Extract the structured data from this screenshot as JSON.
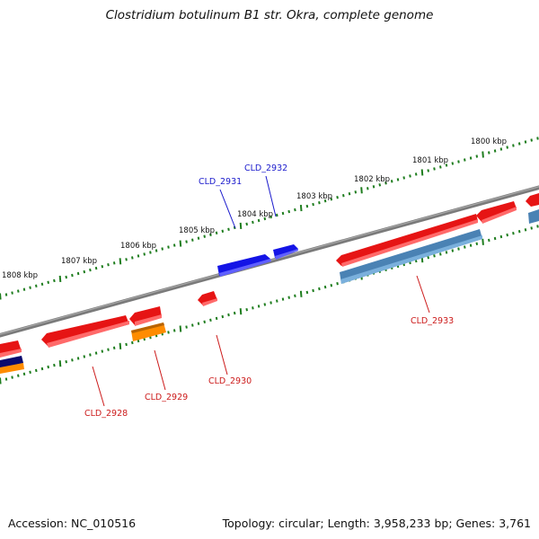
{
  "title": "Clostridium botulinum B1 str. Okra, complete genome",
  "footer": {
    "accession": "Accession: NC_010516",
    "stats": "Topology: circular; Length: 3,958,233 bp; Genes: 3,761"
  },
  "scale_labels": [
    "1800 kbp",
    "1801 kbp",
    "1802 kbp",
    "1803 kbp",
    "1804 kbp",
    "1805 kbp",
    "1806 kbp",
    "1807 kbp",
    "1808 kbp"
  ],
  "gene_labels": [
    {
      "name": "CLD_2931",
      "strand": "forward"
    },
    {
      "name": "CLD_2932",
      "strand": "forward"
    },
    {
      "name": "CLD_2928",
      "strand": "reverse"
    },
    {
      "name": "CLD_2929",
      "strand": "reverse"
    },
    {
      "name": "CLD_2930",
      "strand": "reverse"
    },
    {
      "name": "CLD_2933",
      "strand": "reverse"
    }
  ],
  "colors": {
    "backbone": "#7a7a7a",
    "tick": "#1e7d1e",
    "forward_gene": "#1414e6",
    "reverse_gene": "#e61414",
    "reverse_rna": "#4a82b4",
    "orange_feature": "#ff8c00",
    "navy_feature": "#0a0a6e",
    "forward_label": "#1a1acc",
    "reverse_label": "#cc1a1a"
  }
}
